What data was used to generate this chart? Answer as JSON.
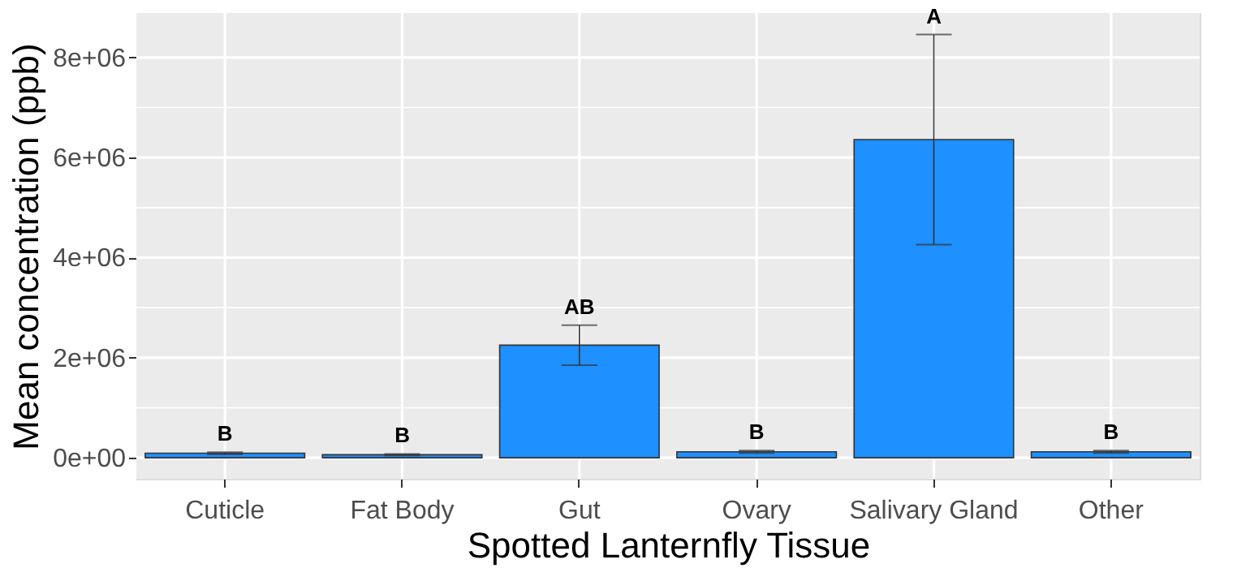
{
  "chart_data": {
    "type": "bar",
    "xlabel": "Spotted Lanternfly Tissue",
    "ylabel": "Mean concentration (ppb)",
    "categories": [
      "Cuticle",
      "Fat Body",
      "Gut",
      "Ovary",
      "Salivary Gland",
      "Other"
    ],
    "values": [
      90000,
      60000,
      2250000,
      120000,
      6360000,
      120000
    ],
    "errors": [
      20000,
      15000,
      400000,
      25000,
      2100000,
      25000
    ],
    "color": "#1e90ff",
    "ylim": [
      -420000,
      8890000
    ],
    "yticks": [
      {
        "value": 0,
        "label": "0e+00"
      },
      {
        "value": 1000000,
        "label": null
      },
      {
        "value": 2000000,
        "label": "2e+06"
      },
      {
        "value": 3000000,
        "label": null
      },
      {
        "value": 4000000,
        "label": "4e+06"
      },
      {
        "value": 5000000,
        "label": null
      },
      {
        "value": 6000000,
        "label": "6e+06"
      },
      {
        "value": 7000000,
        "label": null
      },
      {
        "value": 8000000,
        "label": "8e+06"
      }
    ],
    "grid": true,
    "annotations": [
      {
        "text": "B",
        "x": "Cuticle",
        "y": 110000
      },
      {
        "text": "B",
        "x": "Fat Body",
        "y": 75000
      },
      {
        "text": "AB",
        "x": "Gut",
        "y": 2650000
      },
      {
        "text": "B",
        "x": "Ovary",
        "y": 145000
      },
      {
        "text": "A",
        "x": "Salivary Gland",
        "y": 8460000
      },
      {
        "text": "B",
        "x": "Other",
        "y": 145000
      }
    ]
  }
}
